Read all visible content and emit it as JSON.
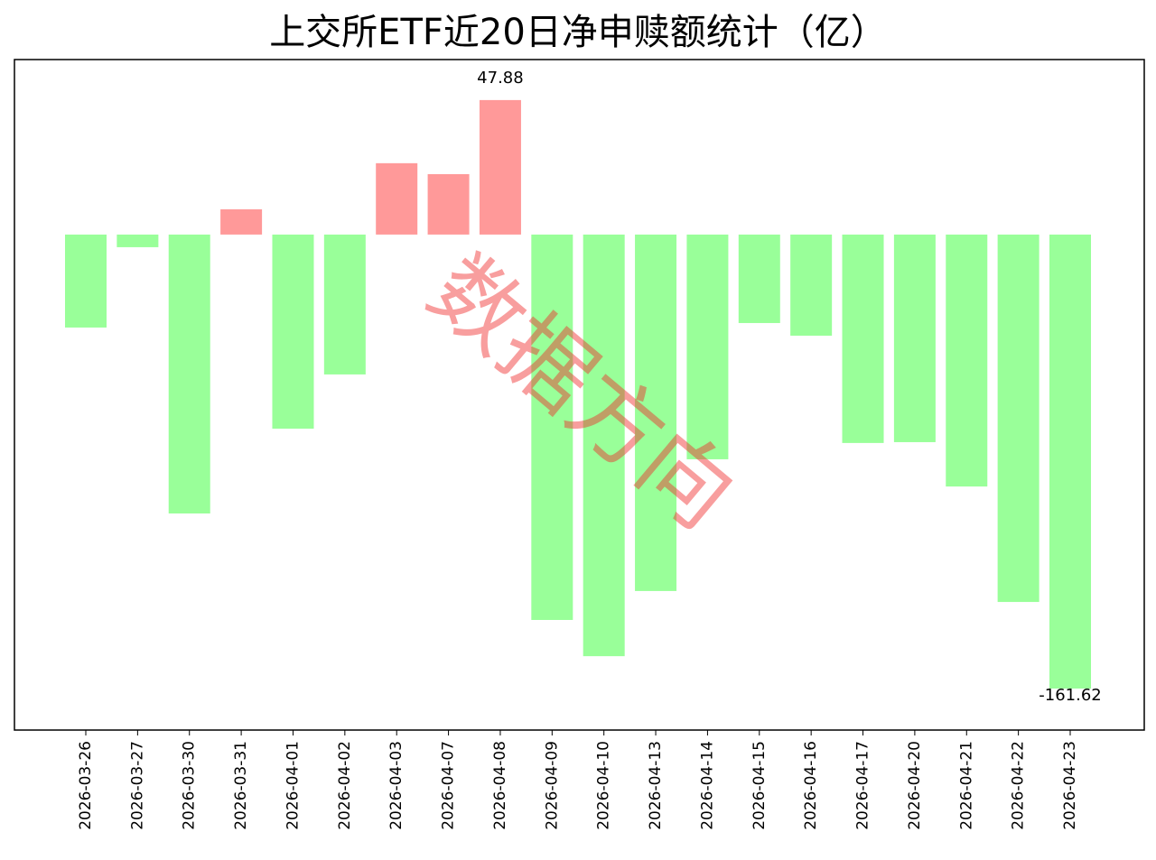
{
  "chart_data": {
    "type": "bar",
    "title": "上交所ETF近20日净申赎额统计（亿）",
    "watermark": "数据方向",
    "categories": [
      "2026-03-26",
      "2026-03-27",
      "2026-03-30",
      "2026-03-31",
      "2026-04-01",
      "2026-04-02",
      "2026-04-03",
      "2026-04-07",
      "2026-04-08",
      "2026-04-09",
      "2026-04-10",
      "2026-04-13",
      "2026-04-14",
      "2026-04-15",
      "2026-04-16",
      "2026-04-17",
      "2026-04-20",
      "2026-04-21",
      "2026-04-22",
      "2026-04-23"
    ],
    "values": [
      -33.1,
      -4.5,
      -99.3,
      9.0,
      -69.1,
      -49.8,
      25.4,
      21.5,
      47.88,
      -137.2,
      -150.1,
      -126.9,
      -80.0,
      -31.5,
      -36.0,
      -74.2,
      -73.9,
      -89.7,
      -130.8,
      -161.62
    ],
    "positive_color": "#ff9999",
    "negative_color": "#99ff99",
    "ylim": [
      -176.4,
      62.3
    ]
  }
}
